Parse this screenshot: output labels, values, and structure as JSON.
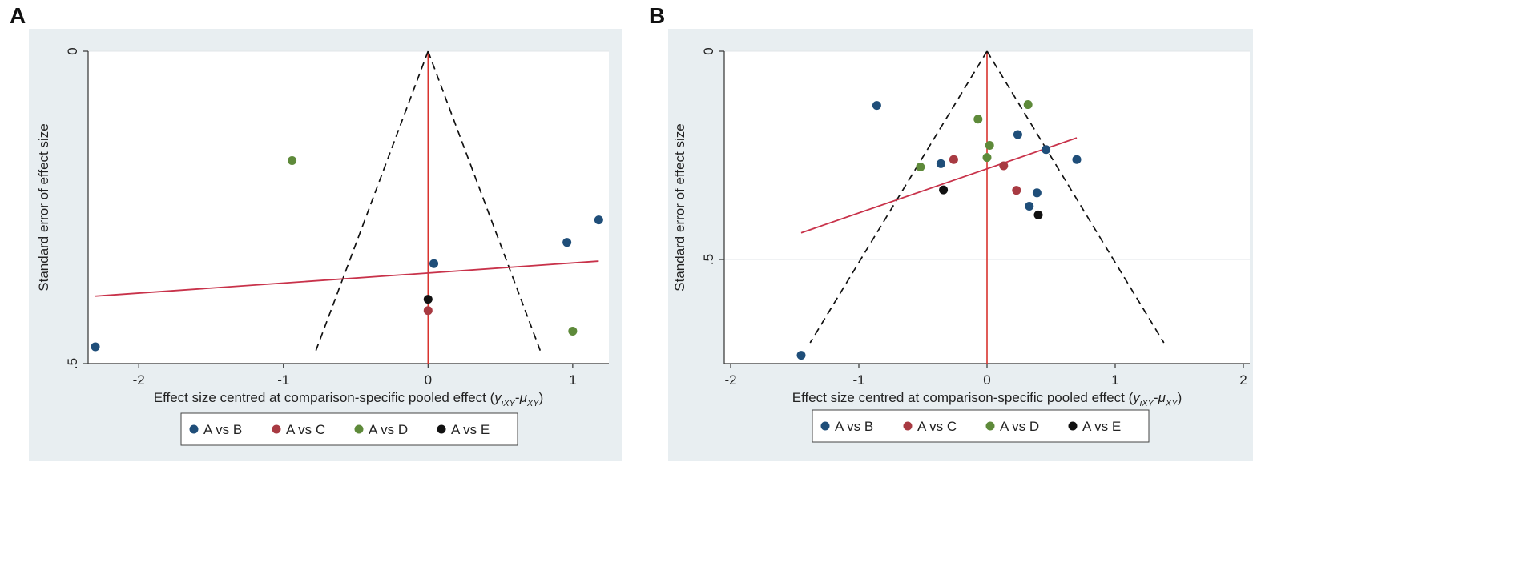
{
  "figure": {
    "panel_labels": [
      "A",
      "B"
    ]
  },
  "colors": {
    "A vs B": "#1f4e79",
    "A vs C": "#a83a42",
    "A vs D": "#5e8a3a",
    "A vs E": "#111111",
    "regression": "#c8324a",
    "null_line": "#d9332e",
    "background_outer": "#e8eef1",
    "plot_bg": "#ffffff"
  },
  "chart_data": [
    {
      "type": "scatter",
      "panel": "A",
      "title": "",
      "xlabel_prefix": "Effect size centred at comparison-specific pooled effect (",
      "xlabel_math": "y",
      "xlabel_sub1": "iXY",
      "xlabel_dash": "-",
      "xlabel_mu": "μ",
      "xlabel_sub2": "XY",
      "xlabel_suffix": ")",
      "ylabel": "Standard error of effect size",
      "xlim": [
        -2.35,
        1.25
      ],
      "ylim": [
        0,
        0.5
      ],
      "y_reversed": true,
      "xticks": [
        -2,
        -1,
        0,
        1
      ],
      "xtick_labels": [
        "-2",
        "-1",
        "0",
        "1"
      ],
      "yticks": [
        0,
        0.5
      ],
      "ytick_labels": [
        "0",
        ".5"
      ],
      "funnel": {
        "apex": [
          0,
          0
        ],
        "left_end": [
          -0.78,
          0.482
        ],
        "right_end": [
          0.78,
          0.482
        ]
      },
      "regression": {
        "x": [
          -2.3,
          1.18
        ],
        "y": [
          0.392,
          0.336
        ]
      },
      "legend": [
        "A vs B",
        "A vs C",
        "A vs D",
        "A vs E"
      ],
      "series": [
        {
          "name": "A vs B",
          "points": [
            [
              -2.3,
              0.473
            ],
            [
              0.04,
              0.34
            ],
            [
              0.96,
              0.306
            ],
            [
              1.18,
              0.27
            ]
          ]
        },
        {
          "name": "A vs C",
          "points": [
            [
              0.0,
              0.415
            ]
          ]
        },
        {
          "name": "A vs D",
          "points": [
            [
              -0.94,
              0.175
            ],
            [
              1.0,
              0.448
            ]
          ]
        },
        {
          "name": "A vs E",
          "points": [
            [
              0.0,
              0.397
            ]
          ]
        }
      ]
    },
    {
      "type": "scatter",
      "panel": "B",
      "title": "",
      "xlabel_prefix": "Effect size centred at comparison-specific pooled effect (",
      "xlabel_math": "y",
      "xlabel_sub1": "iXY",
      "xlabel_dash": "-",
      "xlabel_mu": "μ",
      "xlabel_sub2": "XY",
      "xlabel_suffix": ")",
      "ylabel": "Standard error of effect size",
      "xlim": [
        -2.05,
        2.05
      ],
      "ylim": [
        0,
        0.75
      ],
      "y_reversed": true,
      "xticks": [
        -2,
        -1,
        0,
        1,
        2
      ],
      "xtick_labels": [
        "-2",
        "-1",
        "0",
        "1",
        "2"
      ],
      "yticks": [
        0,
        0.5
      ],
      "ytick_labels": [
        "0",
        ".5"
      ],
      "funnel": {
        "apex": [
          0,
          0
        ],
        "left_end": [
          -1.38,
          0.7
        ],
        "right_end": [
          1.38,
          0.7
        ]
      },
      "regression": {
        "x": [
          -1.45,
          0.7
        ],
        "y": [
          0.436,
          0.208
        ]
      },
      "legend": [
        "A vs B",
        "A vs C",
        "A vs D",
        "A vs E"
      ],
      "series": [
        {
          "name": "A vs B",
          "points": [
            [
              -0.86,
              0.13
            ],
            [
              -0.36,
              0.27
            ],
            [
              0.24,
              0.2
            ],
            [
              0.46,
              0.236
            ],
            [
              0.7,
              0.26
            ],
            [
              0.39,
              0.34
            ],
            [
              0.33,
              0.372
            ],
            [
              -1.45,
              0.73
            ]
          ]
        },
        {
          "name": "A vs C",
          "points": [
            [
              -0.26,
              0.26
            ],
            [
              0.13,
              0.275
            ],
            [
              0.23,
              0.334
            ]
          ]
        },
        {
          "name": "A vs D",
          "points": [
            [
              -0.07,
              0.163
            ],
            [
              0.32,
              0.128
            ],
            [
              0.02,
              0.226
            ],
            [
              0.0,
              0.255
            ],
            [
              -0.52,
              0.278
            ]
          ]
        },
        {
          "name": "A vs E",
          "points": [
            [
              -0.34,
              0.333
            ],
            [
              0.4,
              0.393
            ]
          ]
        }
      ]
    }
  ]
}
